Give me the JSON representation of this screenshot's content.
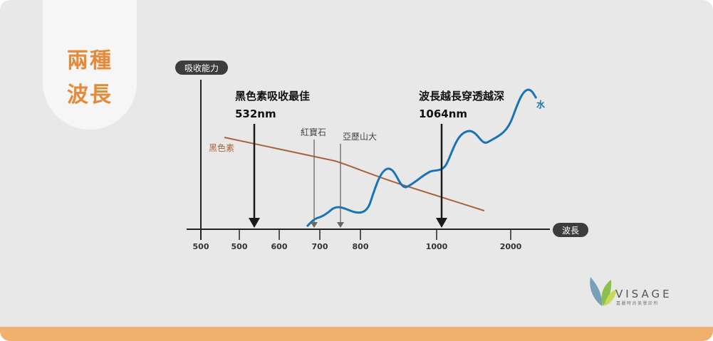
{
  "title": {
    "line1": "兩種",
    "line2": "波長"
  },
  "axis": {
    "y_label": "吸收能力",
    "x_label": "波長",
    "x_ticks": [
      "500",
      "600",
      "700",
      "800",
      "1000",
      "2000"
    ]
  },
  "annotations": {
    "melanin_peak_text": "黑色素吸收最佳",
    "melanin_peak_value": "532nm",
    "water_deep_text": "波長越長穿透越深",
    "water_deep_value": "1064nm",
    "ruby_label": "紅寶石",
    "alexandrite_label": "亞歷山大"
  },
  "series_labels": {
    "melanin": "黑色素",
    "water": "水"
  },
  "colors": {
    "melanin": "#a8643e",
    "water": "#1a74b4",
    "accent": "#e48b3a",
    "axis": "#222222"
  },
  "logo": {
    "name": "VISAGE",
    "tagline": "嘉麗時尚美學診所"
  }
}
